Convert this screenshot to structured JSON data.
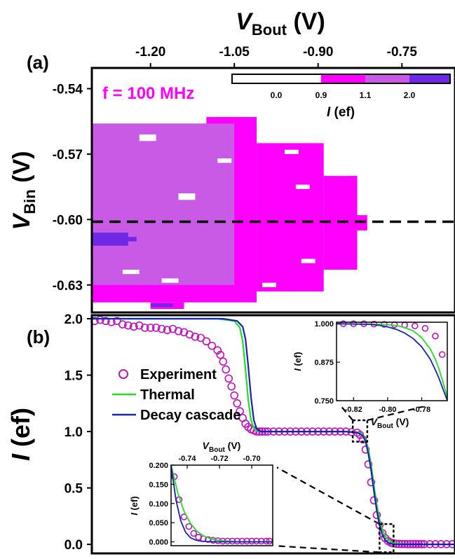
{
  "panels": {
    "a_label": "(a)",
    "b_label": "(b)"
  },
  "colors": {
    "magenta": "#ff00ff",
    "violet": "#c85ae6",
    "purple": "#6f28e6",
    "green": "#22dd22",
    "blue": "#1525b0",
    "marker": "#c010c0"
  },
  "chart_data": [
    {
      "id": "panel-a",
      "type": "heatmap",
      "title": "",
      "annotation": "f = 100 MHz",
      "x_axis": {
        "label_main": "V",
        "label_sub": "Bout",
        "label_unit": " (V)",
        "position": "top",
        "ticks": [
          -1.2,
          -1.05,
          -0.9,
          -0.75
        ],
        "tick_labels": [
          "-1.20",
          "-1.05",
          "-0.90",
          "-0.75"
        ],
        "range": [
          -1.305,
          -0.655
        ]
      },
      "y_axis": {
        "label_main": "V",
        "label_sub": "Bin",
        "label_unit": " (V)",
        "ticks": [
          -0.54,
          -0.57,
          -0.6,
          -0.63
        ],
        "tick_labels": [
          "-0.54",
          "-0.57",
          "-0.60",
          "-0.63"
        ],
        "range": [
          -0.6426,
          -0.5305
        ]
      },
      "dashed_line_y": -0.601,
      "colorbar": {
        "label_main": "I",
        "label_unit": " (ef)",
        "tick_labels": [
          "0.0",
          "0.9",
          "1.1",
          "2.0"
        ],
        "levels": [
          0.0,
          0.9,
          1.1,
          2.0
        ]
      },
      "regions": [
        {
          "level": 1.0,
          "x": [
            -1.305,
            -1.01
          ],
          "y": [
            -0.638,
            -0.556
          ]
        },
        {
          "level": 1.0,
          "x": [
            -1.01,
            -0.89
          ],
          "y": [
            -0.633,
            -0.565
          ]
        },
        {
          "level": 1.0,
          "x": [
            -0.89,
            -0.83
          ],
          "y": [
            -0.623,
            -0.58
          ]
        },
        {
          "level": 1.0,
          "x": [
            -0.83,
            -0.812
          ],
          "y": [
            -0.605,
            -0.598
          ]
        },
        {
          "level": 1.0,
          "x": [
            -1.1,
            -1.01
          ],
          "y": [
            -0.56,
            -0.553
          ]
        },
        {
          "level": 1.0,
          "x": [
            -1.2,
            -1.14
          ],
          "y": [
            -0.641,
            -0.638
          ]
        },
        {
          "level": 1.5,
          "x": [
            -1.305,
            -1.05
          ],
          "y": [
            -0.63,
            -0.556
          ]
        },
        {
          "level": 2.0,
          "x": [
            -1.305,
            -1.24
          ],
          "y": [
            -0.612,
            -0.606
          ]
        },
        {
          "level": 2.0,
          "x": [
            -1.26,
            -1.225
          ],
          "y": [
            -0.61,
            -0.608
          ]
        },
        {
          "level": 2.0,
          "x": [
            -1.2,
            -1.16
          ],
          "y": [
            -0.64,
            -0.6385
          ]
        },
        {
          "level": 0.0,
          "x": [
            -1.22,
            -1.19
          ],
          "y": [
            -0.564,
            -0.561
          ]
        },
        {
          "level": 0.0,
          "x": [
            -1.15,
            -1.12
          ],
          "y": [
            -0.591,
            -0.588
          ]
        },
        {
          "level": 0.0,
          "x": [
            -1.08,
            -1.055
          ],
          "y": [
            -0.574,
            -0.572
          ]
        },
        {
          "level": 0.0,
          "x": [
            -0.96,
            -0.935
          ],
          "y": [
            -0.57,
            -0.568
          ]
        },
        {
          "level": 0.0,
          "x": [
            -0.94,
            -0.915
          ],
          "y": [
            -0.586,
            -0.584
          ]
        },
        {
          "level": 0.0,
          "x": [
            -0.93,
            -0.905
          ],
          "y": [
            -0.62,
            -0.618
          ]
        },
        {
          "level": 0.0,
          "x": [
            -1.25,
            -1.22
          ],
          "y": [
            -0.625,
            -0.623
          ]
        },
        {
          "level": 0.0,
          "x": [
            -1.18,
            -1.15
          ],
          "y": [
            -0.629,
            -0.627
          ]
        },
        {
          "level": 0.0,
          "x": [
            -1.0,
            -0.975
          ],
          "y": [
            -0.631,
            -0.629
          ]
        },
        {
          "level": 0.0,
          "x": [
            -0.87,
            -0.85
          ],
          "y": [
            -0.58,
            -0.578
          ]
        }
      ]
    },
    {
      "id": "panel-b",
      "type": "line",
      "title": "",
      "x_range": [
        -1.305,
        -0.655
      ],
      "y_axis": {
        "label_main": "I",
        "label_unit": " (ef)",
        "ticks": [
          0.0,
          0.5,
          1.0,
          1.5,
          2.0
        ],
        "tick_labels": [
          "0.0",
          "0.5",
          "1.0",
          "1.5",
          "2.0"
        ],
        "range": [
          -0.08,
          2.0
        ]
      },
      "legend": {
        "position": "center-left",
        "entries": [
          "Experiment",
          "Thermal",
          "Decay cascade"
        ]
      },
      "series": [
        {
          "name": "Experiment",
          "kind": "markers",
          "x": [
            -1.3,
            -1.29,
            -1.28,
            -1.27,
            -1.26,
            -1.25,
            -1.24,
            -1.23,
            -1.22,
            -1.21,
            -1.2,
            -1.19,
            -1.18,
            -1.17,
            -1.16,
            -1.15,
            -1.14,
            -1.13,
            -1.12,
            -1.11,
            -1.1,
            -1.09,
            -1.08,
            -1.075,
            -1.07,
            -1.065,
            -1.06,
            -1.055,
            -1.05,
            -1.045,
            -1.04,
            -1.035,
            -1.03,
            -1.025,
            -1.02,
            -1.015,
            -1.01,
            -1.005,
            -1.0,
            -0.995,
            -0.99,
            -0.98,
            -0.97,
            -0.96,
            -0.95,
            -0.94,
            -0.93,
            -0.92,
            -0.91,
            -0.9,
            -0.89,
            -0.88,
            -0.87,
            -0.86,
            -0.85,
            -0.84,
            -0.83,
            -0.825,
            -0.82,
            -0.815,
            -0.81,
            -0.805,
            -0.8,
            -0.795,
            -0.79,
            -0.785,
            -0.78,
            -0.775,
            -0.77,
            -0.765,
            -0.76,
            -0.755,
            -0.75,
            -0.745,
            -0.74,
            -0.735,
            -0.73,
            -0.725,
            -0.72,
            -0.715,
            -0.71,
            -0.7,
            -0.69,
            -0.68,
            -0.67,
            -0.66
          ],
          "y": [
            1.98,
            1.99,
            1.98,
            1.97,
            1.98,
            1.95,
            1.94,
            1.93,
            1.94,
            1.92,
            1.92,
            1.92,
            1.91,
            1.9,
            1.91,
            1.89,
            1.88,
            1.86,
            1.84,
            1.83,
            1.8,
            1.76,
            1.72,
            1.68,
            1.62,
            1.55,
            1.47,
            1.4,
            1.32,
            1.25,
            1.18,
            1.12,
            1.07,
            1.04,
            1.02,
            1.01,
            1.0,
            1.0,
            1.0,
            1.0,
            1.0,
            1.0,
            1.0,
            1.0,
            1.0,
            1.0,
            1.0,
            1.0,
            1.0,
            1.0,
            1.0,
            1.0,
            1.0,
            1.0,
            1.0,
            0.995,
            0.99,
            0.97,
            0.93,
            0.84,
            0.71,
            0.55,
            0.39,
            0.26,
            0.17,
            0.1,
            0.055,
            0.03,
            0.015,
            0.008,
            0.005,
            0.004,
            0.003,
            0.003,
            0.002,
            0.002,
            0.002,
            0.002,
            0.002,
            0.002,
            0.002,
            0.002,
            0.002,
            0.002,
            0.002,
            0.002
          ]
        },
        {
          "name": "Thermal",
          "kind": "line",
          "x": [
            -1.305,
            -1.08,
            -1.05,
            -1.04,
            -1.035,
            -1.03,
            -1.025,
            -1.02,
            -1.015,
            -1.01,
            -1.0,
            -0.98,
            -0.85,
            -0.83,
            -0.82,
            -0.815,
            -0.81,
            -0.805,
            -0.8,
            -0.795,
            -0.79,
            -0.785,
            -0.78,
            -0.775,
            -0.77,
            -0.765,
            -0.76,
            -0.75,
            -0.73,
            -0.655
          ],
          "y": [
            2.0,
            2.0,
            1.98,
            1.92,
            1.8,
            1.55,
            1.28,
            1.1,
            1.03,
            1.005,
            1.0,
            1.0,
            1.0,
            0.995,
            0.975,
            0.93,
            0.84,
            0.7,
            0.52,
            0.35,
            0.22,
            0.13,
            0.075,
            0.042,
            0.024,
            0.014,
            0.008,
            0.003,
            0.001,
            0.0
          ]
        },
        {
          "name": "Decay cascade",
          "kind": "line",
          "x": [
            -1.305,
            -1.07,
            -1.045,
            -1.035,
            -1.03,
            -1.025,
            -1.02,
            -1.015,
            -1.01,
            -1.005,
            -1.0,
            -0.98,
            -0.85,
            -0.83,
            -0.82,
            -0.815,
            -0.81,
            -0.805,
            -0.8,
            -0.795,
            -0.79,
            -0.785,
            -0.78,
            -0.775,
            -0.77,
            -0.765,
            -0.76,
            -0.75,
            -0.73,
            -0.655
          ],
          "y": [
            2.0,
            2.0,
            1.98,
            1.93,
            1.82,
            1.58,
            1.3,
            1.1,
            1.025,
            1.005,
            1.0,
            1.0,
            1.0,
            0.99,
            0.965,
            0.91,
            0.8,
            0.65,
            0.47,
            0.3,
            0.17,
            0.085,
            0.04,
            0.016,
            0.006,
            0.002,
            0.001,
            0.0,
            0.0,
            0.0
          ]
        }
      ],
      "zoom_boxes": [
        {
          "x": [
            -0.838,
            -0.812
          ],
          "y": [
            0.91,
            1.1
          ]
        },
        {
          "x": [
            -0.79,
            -0.765
          ],
          "y": [
            -0.07,
            0.18
          ]
        }
      ]
    },
    {
      "id": "inset-top",
      "type": "line",
      "title": "",
      "x_axis": {
        "label_main": "V",
        "label_sub": "Bout",
        "label_unit": " (V)",
        "ticks": [
          -0.82,
          -0.8,
          -0.78
        ],
        "tick_labels": [
          "-0.82",
          "-0.80",
          "-0.78"
        ],
        "range": [
          -0.83,
          -0.765
        ]
      },
      "y_axis": {
        "label_main": "I",
        "label_unit": " (ef)",
        "ticks": [
          1.0,
          0.875,
          0.75
        ],
        "tick_labels": [
          "1.000",
          "0.875",
          "0.750"
        ],
        "range": [
          0.75,
          1.005
        ]
      },
      "series": [
        {
          "name": "Experiment",
          "kind": "markers",
          "x": [
            -0.826,
            -0.82,
            -0.814,
            -0.808,
            -0.802,
            -0.796,
            -0.79,
            -0.784,
            -0.778,
            -0.772,
            -0.768
          ],
          "y": [
            1.0,
            1.0,
            1.0,
            0.999,
            0.998,
            0.997,
            0.996,
            0.993,
            0.985,
            0.96,
            0.9
          ]
        },
        {
          "name": "Thermal",
          "kind": "line",
          "x": [
            -0.83,
            -0.81,
            -0.8,
            -0.795,
            -0.79,
            -0.785,
            -0.78,
            -0.775,
            -0.772,
            -0.77,
            -0.768,
            -0.766,
            -0.765
          ],
          "y": [
            1.0,
            0.999,
            0.997,
            0.994,
            0.988,
            0.977,
            0.955,
            0.918,
            0.885,
            0.855,
            0.82,
            0.78,
            0.76
          ]
        },
        {
          "name": "Decay cascade",
          "kind": "line",
          "x": [
            -0.83,
            -0.81,
            -0.805,
            -0.8,
            -0.795,
            -0.79,
            -0.785,
            -0.78,
            -0.775,
            -0.772,
            -0.77,
            -0.768,
            -0.766,
            -0.765
          ],
          "y": [
            1.0,
            0.998,
            0.995,
            0.99,
            0.982,
            0.97,
            0.952,
            0.925,
            0.885,
            0.85,
            0.825,
            0.795,
            0.765,
            0.75
          ]
        }
      ]
    },
    {
      "id": "inset-bottom",
      "type": "line",
      "title": "",
      "x_axis": {
        "label_main": "V",
        "label_sub": "Bout",
        "label_unit": " (V)",
        "position": "top",
        "ticks": [
          -0.74,
          -0.72,
          -0.7
        ],
        "tick_labels": [
          "-0.74",
          "-0.72",
          "-0.70"
        ],
        "range": [
          -0.75,
          -0.687
        ]
      },
      "y_axis": {
        "label_main": "I",
        "label_unit": " (ef)",
        "ticks": [
          0.2,
          0.15,
          0.1,
          0.05,
          0.0
        ],
        "tick_labels": [
          "0.200",
          "0.150",
          "0.100",
          "0.050",
          "0.000"
        ],
        "range": [
          -0.01,
          0.2
        ]
      },
      "series": [
        {
          "name": "Experiment",
          "kind": "markers",
          "x": [
            -0.748,
            -0.745,
            -0.742,
            -0.739,
            -0.736,
            -0.733,
            -0.73,
            -0.727,
            -0.724,
            -0.721,
            -0.718,
            -0.715,
            -0.712,
            -0.709,
            -0.706,
            -0.703,
            -0.7,
            -0.697,
            -0.694,
            -0.691,
            -0.689
          ],
          "y": [
            0.17,
            0.11,
            0.065,
            0.04,
            0.022,
            0.012,
            0.008,
            0.006,
            0.004,
            0.003,
            0.002,
            0.002,
            0.002,
            0.002,
            0.002,
            0.002,
            0.002,
            0.002,
            0.002,
            0.002,
            0.002
          ]
        },
        {
          "name": "Thermal",
          "kind": "line",
          "x": [
            -0.75,
            -0.746,
            -0.742,
            -0.738,
            -0.734,
            -0.73,
            -0.726,
            -0.722,
            -0.718,
            -0.714,
            -0.71,
            -0.7,
            -0.687
          ],
          "y": [
            0.2,
            0.13,
            0.08,
            0.048,
            0.028,
            0.016,
            0.009,
            0.005,
            0.003,
            0.002,
            0.001,
            0.0005,
            0.0003
          ]
        },
        {
          "name": "Decay cascade",
          "kind": "line",
          "x": [
            -0.75,
            -0.747,
            -0.744,
            -0.741,
            -0.738,
            -0.735,
            -0.732,
            -0.728,
            -0.724,
            -0.718,
            -0.71,
            -0.7,
            -0.687
          ],
          "y": [
            0.2,
            0.11,
            0.055,
            0.025,
            0.011,
            0.005,
            0.002,
            0.001,
            0.0005,
            0.0002,
            0.0001,
            0.0,
            0.0
          ]
        }
      ]
    }
  ]
}
